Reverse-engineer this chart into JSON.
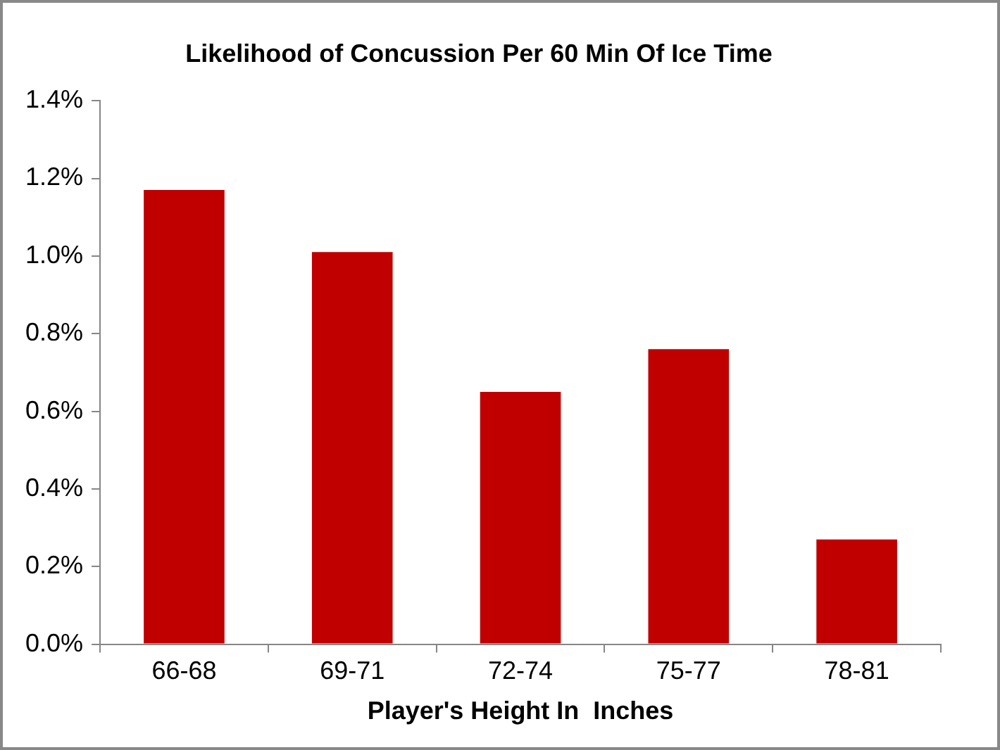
{
  "chart_data": {
    "type": "bar",
    "title": "Likelihood of Concussion Per 60 Min Of Ice Time",
    "xlabel": "Player's Height In  Inches",
    "categories": [
      "66-68",
      "69-71",
      "72-74",
      "75-77",
      "78-81"
    ],
    "values": [
      1.17,
      1.01,
      0.65,
      0.76,
      0.27
    ],
    "color": "#c00000",
    "ylim": [
      0,
      1.4
    ],
    "yticks": [
      {
        "value": 0,
        "label": "0.0%"
      },
      {
        "value": 0.2,
        "label": "0.2%"
      },
      {
        "value": 0.4,
        "label": "0.4%"
      },
      {
        "value": 0.6,
        "label": "0.6%"
      },
      {
        "value": 0.8,
        "label": "0.8%"
      },
      {
        "value": 1.0,
        "label": "1.0%"
      },
      {
        "value": 1.2,
        "label": "1.2%"
      },
      {
        "value": 1.4,
        "label": "1.4%"
      }
    ],
    "grid": false,
    "legend": false
  }
}
